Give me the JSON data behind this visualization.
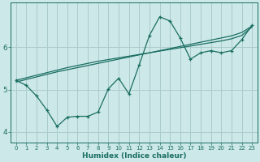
{
  "xlabel": "Humidex (Indice chaleur)",
  "bg_color": "#cce8e8",
  "grid_color": "#aacccc",
  "line_color": "#1a6e62",
  "x": [
    0,
    1,
    2,
    3,
    4,
    5,
    6,
    7,
    8,
    9,
    10,
    11,
    12,
    13,
    14,
    15,
    16,
    17,
    18,
    19,
    20,
    21,
    22,
    23
  ],
  "line_straight1": [
    5.22,
    5.28,
    5.34,
    5.4,
    5.46,
    5.52,
    5.57,
    5.62,
    5.67,
    5.71,
    5.75,
    5.79,
    5.83,
    5.87,
    5.91,
    5.95,
    5.99,
    6.03,
    6.07,
    6.11,
    6.15,
    6.2,
    6.28,
    6.48
  ],
  "line_straight2": [
    5.18,
    5.24,
    5.3,
    5.36,
    5.42,
    5.47,
    5.52,
    5.57,
    5.62,
    5.67,
    5.72,
    5.77,
    5.82,
    5.87,
    5.92,
    5.97,
    6.02,
    6.07,
    6.12,
    6.17,
    6.22,
    6.27,
    6.35,
    6.5
  ],
  "line_jagged": [
    5.22,
    5.1,
    4.85,
    4.52,
    4.13,
    4.35,
    4.37,
    4.37,
    4.47,
    5.02,
    5.27,
    4.9,
    5.58,
    6.28,
    6.72,
    6.62,
    6.22,
    5.72,
    5.87,
    5.92,
    5.87,
    5.92,
    6.18,
    6.52
  ],
  "ylim": [
    3.75,
    7.05
  ],
  "xlim": [
    -0.5,
    23.5
  ],
  "yticks": [
    4,
    5,
    6
  ],
  "xticks": [
    0,
    1,
    2,
    3,
    4,
    5,
    6,
    7,
    8,
    9,
    10,
    11,
    12,
    13,
    14,
    15,
    16,
    17,
    18,
    19,
    20,
    21,
    22,
    23
  ]
}
